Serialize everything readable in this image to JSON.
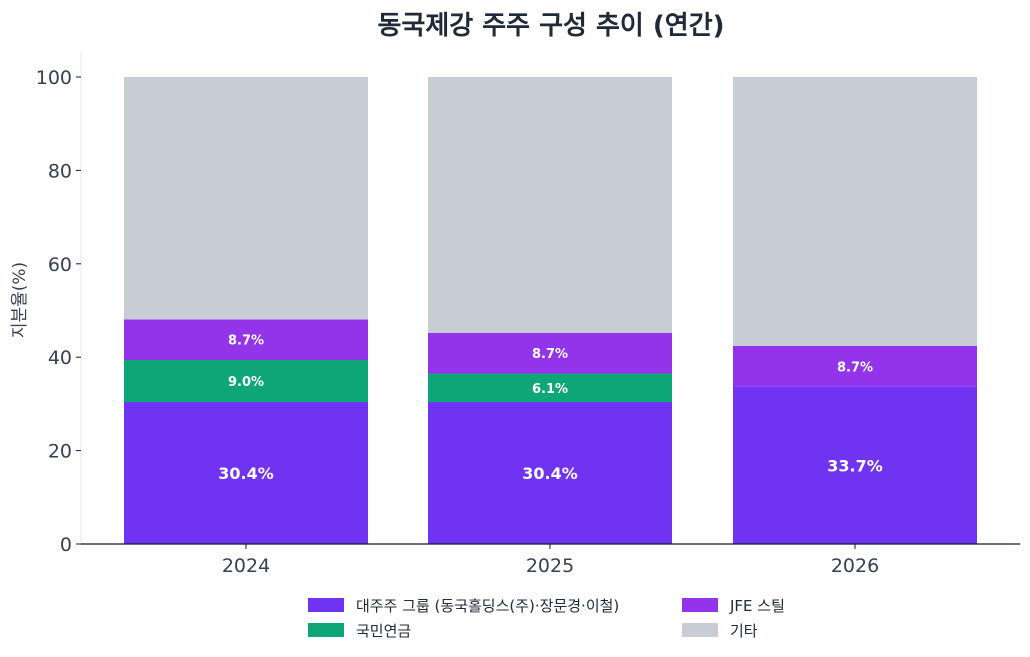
{
  "chart_data": {
    "type": "bar",
    "stacked": true,
    "title": "동국제강 주주 구성 추이 (연간)",
    "xlabel": "",
    "ylabel": "지분율(%)",
    "ylim": [
      0,
      100
    ],
    "yticks": [
      "0",
      "20",
      "40",
      "60",
      "80",
      "100"
    ],
    "categories": [
      "2024",
      "2025",
      "2026"
    ],
    "series": [
      {
        "name": "대주주 그룹 (동국홀딩스(주)·장문경·이철)",
        "color": "#7133f2",
        "values": [
          30.4,
          30.4,
          33.7
        ],
        "labels": [
          "30.4%",
          "30.4%",
          "33.7%"
        ]
      },
      {
        "name": "국민연금",
        "color": "#0ea677",
        "values": [
          9.0,
          6.1,
          0
        ],
        "labels": [
          "9.0%",
          "6.1%",
          ""
        ]
      },
      {
        "name": "JFE 스틸",
        "color": "#9333ea",
        "values": [
          8.7,
          8.7,
          8.7
        ],
        "labels": [
          "8.7%",
          "8.7%",
          "8.7%"
        ]
      },
      {
        "name": "기타",
        "color": "#c8ccd5",
        "values": [
          51.9,
          54.8,
          57.6
        ],
        "labels": [
          "",
          "",
          ""
        ]
      }
    ],
    "grid": false,
    "legend_position": "bottom"
  }
}
